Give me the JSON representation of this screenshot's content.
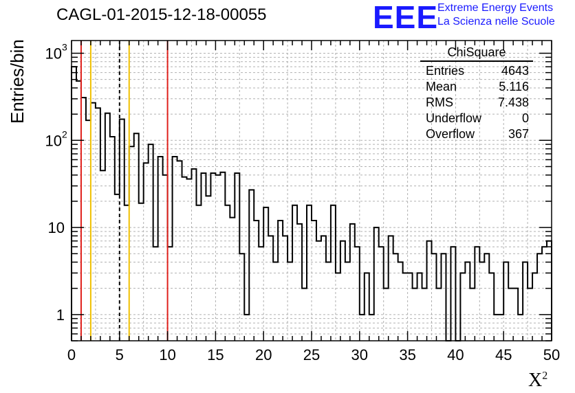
{
  "page": {
    "title": "CAGL-01-2015-12-18-00055",
    "logo_text": "EEE",
    "logo_line1": "Extreme Energy Events",
    "logo_line2": "La Scienza nelle Scuole"
  },
  "stats_box": {
    "title": "ChiSquare",
    "rows": [
      {
        "label": "Entries",
        "value": "4643"
      },
      {
        "label": "Mean",
        "value": "5.116"
      },
      {
        "label": "RMS",
        "value": "7.438"
      },
      {
        "label": "Underflow",
        "value": "0"
      },
      {
        "label": "Overflow",
        "value": "367"
      }
    ]
  },
  "colors": {
    "histogram": "#000000",
    "red_lines": "#e0201b",
    "yellow_lines": "#f0c000",
    "dashed_line": "#000000",
    "grid": "#b0b0b0",
    "logo": "#1a1aff"
  },
  "chart_data": {
    "type": "bar",
    "title": "CAGL-01-2015-12-18-00055",
    "xlabel": "X",
    "xlabel_superscript": "2",
    "ylabel": "Entries/bin",
    "xlim": [
      0,
      50
    ],
    "ylim": [
      0.5,
      1400
    ],
    "y_scale": "log",
    "grid": true,
    "x_ticks": [
      "0",
      "5",
      "10",
      "15",
      "20",
      "25",
      "30",
      "35",
      "40",
      "45",
      "50"
    ],
    "y_ticks": [
      {
        "base": "1",
        "exp": ""
      },
      {
        "base": "10",
        "exp": ""
      },
      {
        "base": "10",
        "exp": "2"
      },
      {
        "base": "10",
        "exp": "3"
      }
    ],
    "bin_width": 0.5,
    "bin_start": 0,
    "values": [
      700,
      480,
      310,
      170,
      270,
      235,
      45,
      205,
      110,
      24,
      175,
      18,
      85,
      120,
      19,
      55,
      90,
      6,
      65,
      40,
      6,
      65,
      58,
      38,
      36,
      47,
      18,
      42,
      23,
      42,
      40,
      43,
      18,
      13,
      42,
      5,
      1,
      27,
      12,
      6,
      17,
      8,
      4,
      12,
      8,
      4,
      18,
      11,
      2,
      18,
      12,
      7,
      8,
      4,
      18,
      3,
      7,
      4,
      11,
      6,
      1,
      3,
      1,
      10,
      6,
      2,
      8,
      5,
      4,
      3,
      3,
      2,
      3,
      2,
      7,
      5,
      2,
      5,
      0.3,
      6,
      0.3,
      3,
      4,
      2,
      6,
      4,
      5,
      3,
      1,
      1,
      4,
      2,
      2,
      1,
      4,
      2,
      3,
      5,
      6,
      7
    ],
    "vertical_lines": [
      {
        "x": 1,
        "style": "solid",
        "color": "red"
      },
      {
        "x": 2,
        "style": "solid",
        "color": "yellow"
      },
      {
        "x": 5,
        "style": "dashed",
        "color": "black"
      },
      {
        "x": 6,
        "style": "solid",
        "color": "yellow"
      },
      {
        "x": 10,
        "style": "solid",
        "color": "red"
      }
    ]
  }
}
